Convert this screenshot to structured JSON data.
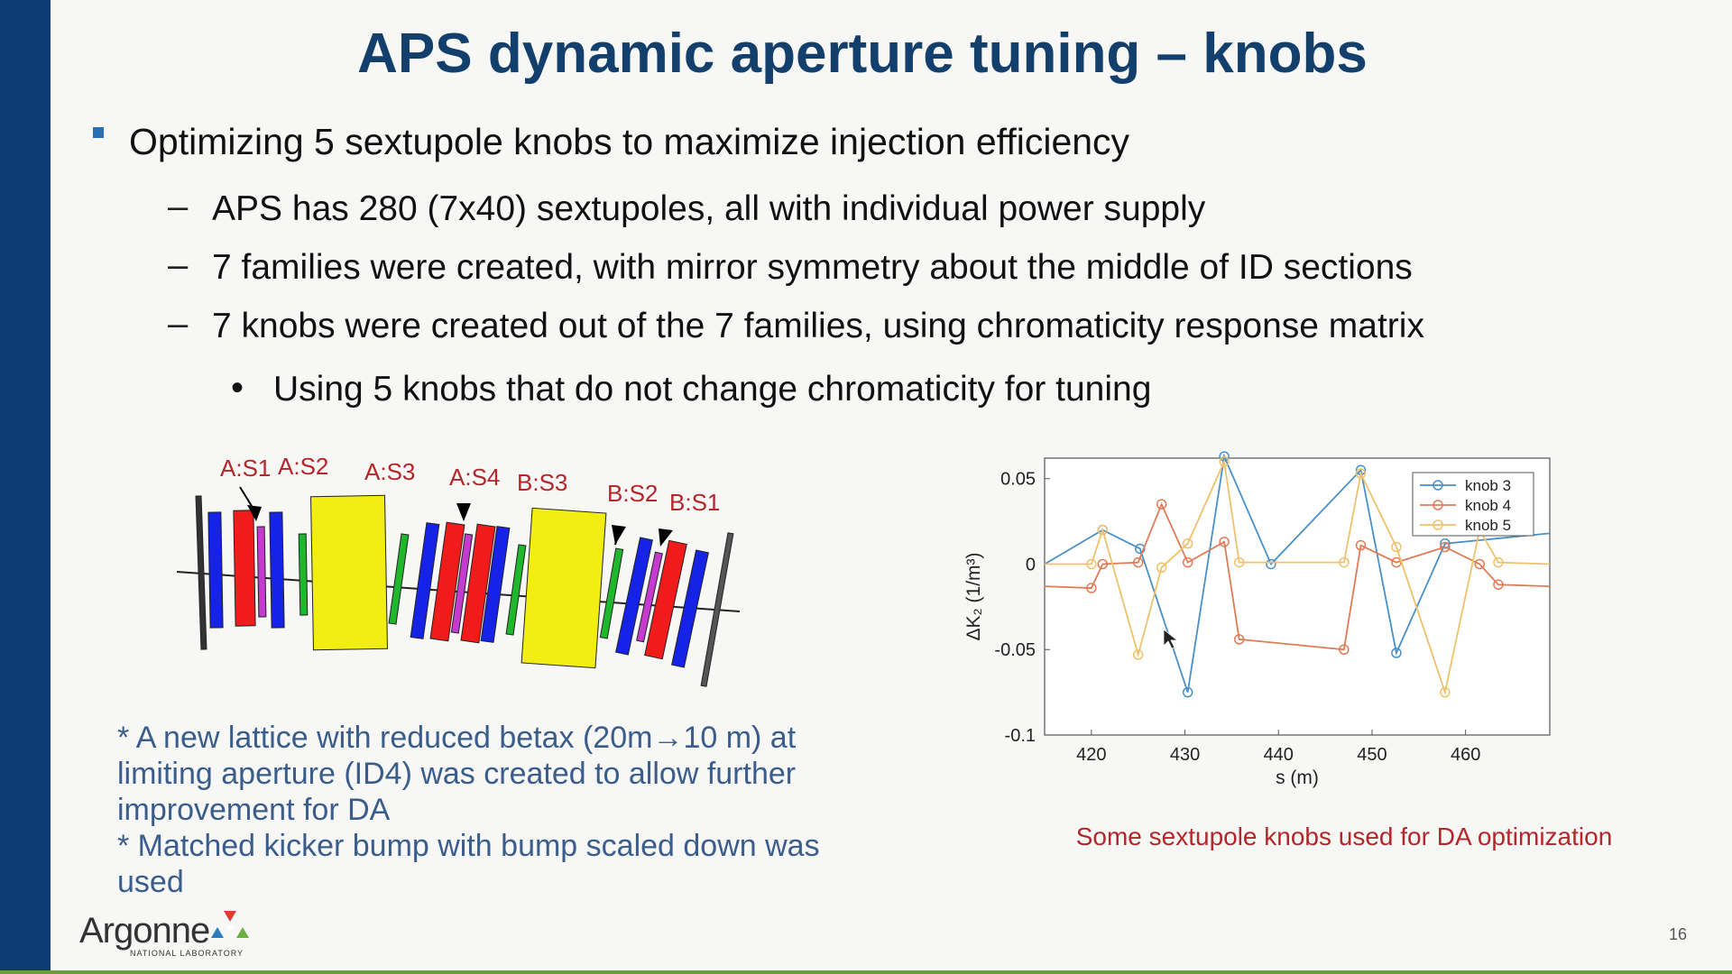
{
  "slide": {
    "title": "APS dynamic aperture tuning – knobs",
    "bullet_main": "Optimizing 5 sextupole knobs to maximize injection efficiency",
    "sub_bullets": [
      "APS has 280 (7x40) sextupoles, all with individual power supply",
      "7 families were created, with mirror symmetry about the middle of ID sections",
      "7 knobs were created out of the 7 families, using chromaticity response matrix"
    ],
    "sub_sub_bullet": "Using 5 knobs that do not change chromaticity for tuning",
    "dash_glyph": "–",
    "dot_glyph": "•",
    "page_number": "16"
  },
  "lattice": {
    "labels": [
      "A:S1",
      "A:S2",
      "A:S3",
      "A:S4",
      "B:S3",
      "B:S2",
      "B:S1"
    ],
    "colors": {
      "red": "#f21b1b",
      "blue": "#1623e6",
      "green": "#1fb82c",
      "magenta": "#c53bd0",
      "yellow": "#f2ee12"
    }
  },
  "notes": {
    "line1": "* A new lattice with reduced betax (20m→10 m) at limiting aperture (ID4) was created to allow further improvement for DA",
    "line2": "* Matched kicker bump with bump scaled down was used"
  },
  "chart_data": {
    "type": "line",
    "xlabel": "s (m)",
    "ylabel": "ΔK₂ (1/m³)",
    "xlim": [
      415,
      469
    ],
    "ylim": [
      -0.1,
      0.062
    ],
    "xticks": [
      420,
      430,
      440,
      450,
      460
    ],
    "yticks": [
      -0.1,
      -0.05,
      0,
      0.05
    ],
    "ytick_labels": [
      "-0.1",
      "-0.05",
      "0",
      "0.05"
    ],
    "legend_position": "top-right",
    "series": [
      {
        "name": "knob 3",
        "color": "#4a90c8",
        "x": [
          415,
          421.2,
          425.2,
          430.3,
          434.2,
          439.2,
          448.8,
          452.6,
          457.8,
          469
        ],
        "y": [
          0,
          0.02,
          0.009,
          -0.075,
          0.063,
          0,
          0.055,
          -0.052,
          0.012,
          0.018
        ]
      },
      {
        "name": "knob 4",
        "color": "#e07b57",
        "x": [
          415,
          420.0,
          421.2,
          425.0,
          427.5,
          430.3,
          434.2,
          435.8,
          447.0,
          448.8,
          452.6,
          457.8,
          461.5,
          463.5,
          469
        ],
        "y": [
          -0.013,
          -0.014,
          0,
          0.001,
          0.035,
          0.001,
          0.013,
          -0.044,
          -0.05,
          0.011,
          0.001,
          0.01,
          0,
          -0.012,
          -0.013
        ]
      },
      {
        "name": "knob 5",
        "color": "#efc16a",
        "x": [
          415,
          420.0,
          421.2,
          425.0,
          427.5,
          430.3,
          434.2,
          435.8,
          447.0,
          448.8,
          452.6,
          457.8,
          461.5,
          463.5,
          469
        ],
        "y": [
          0,
          0,
          0.02,
          -0.053,
          -0.002,
          0.012,
          0.06,
          0.001,
          0.001,
          0.053,
          0.01,
          -0.075,
          0.02,
          0.001,
          0
        ]
      }
    ]
  },
  "caption": "Some sextupole knobs used for DA optimization",
  "logo": {
    "word": "Argonne",
    "sub": "NATIONAL LABORATORY",
    "colors": [
      "#e03c31",
      "#2b7bbf",
      "#6ab042"
    ]
  }
}
